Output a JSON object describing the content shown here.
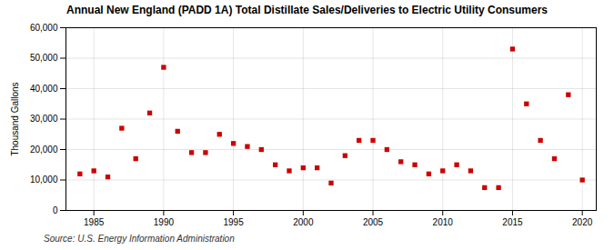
{
  "chart_data": {
    "type": "scatter",
    "title": "Annual New England (PADD 1A) Total Distillate Sales/Deliveries to Electric Utility Consumers",
    "ylabel": "Thousand Gallons",
    "source": "Source: U.S. Energy Information Administration",
    "color": "#cc0000",
    "marker": "square",
    "grid": true,
    "xlim": [
      1983,
      2021
    ],
    "xticks": [
      1985,
      1990,
      1995,
      2000,
      2005,
      2010,
      2015,
      2020
    ],
    "ylim": [
      0,
      60000
    ],
    "yticks": [
      0,
      {
        "value": 10000,
        "label": "10,000"
      },
      {
        "value": 20000,
        "label": "20,000"
      },
      {
        "value": 30000,
        "label": "30,000"
      },
      {
        "value": 40000,
        "label": "40,000"
      },
      {
        "value": 50000,
        "label": "50,000"
      },
      {
        "value": 60000,
        "label": "60,000"
      }
    ],
    "x": [
      1984,
      1985,
      1986,
      1987,
      1988,
      1989,
      1990,
      1991,
      1992,
      1993,
      1994,
      1995,
      1996,
      1997,
      1998,
      1999,
      2000,
      2001,
      2002,
      2003,
      2004,
      2005,
      2006,
      2007,
      2008,
      2009,
      2010,
      2011,
      2012,
      2013,
      2014,
      2015,
      2016,
      2017,
      2018,
      2019,
      2020
    ],
    "values": [
      12000,
      13000,
      11000,
      27000,
      17000,
      32000,
      47000,
      26000,
      19000,
      19000,
      25000,
      22000,
      21000,
      20000,
      15000,
      13000,
      14000,
      14000,
      9000,
      18000,
      23000,
      23000,
      20000,
      16000,
      15000,
      12000,
      13000,
      15000,
      13000,
      7500,
      7500,
      53000,
      35000,
      23000,
      17000,
      38000,
      10000
    ]
  }
}
